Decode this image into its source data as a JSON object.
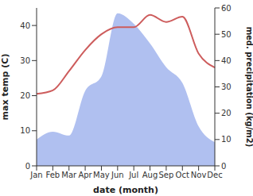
{
  "chart_data": {
    "type": "line",
    "x_label": "date (month)",
    "y_label": "max temp (C)",
    "y2_label": "med. precipitation (kg/m2)",
    "categories": [
      "Jan",
      "Feb",
      "Mar",
      "Apr",
      "May",
      "Jun",
      "Jul",
      "Aug",
      "Sep",
      "Oct",
      "Nov",
      "Dec"
    ],
    "ylim": [
      0,
      45
    ],
    "yticks": [
      0,
      10,
      20,
      30,
      40
    ],
    "y2lim": [
      0,
      60
    ],
    "y2ticks": [
      0,
      10,
      20,
      30,
      40,
      50,
      60
    ],
    "series": [
      {
        "name": "max temp (C)",
        "type": "line",
        "color": "#cd5c5c",
        "axis": "y",
        "values": [
          20.5,
          21.5,
          27,
          33,
          37.5,
          39.5,
          39.5,
          43,
          41,
          42.5,
          32,
          28
        ]
      },
      {
        "name": "med. precipitation (kg/m2)",
        "type": "area",
        "color": "#b0c0f0",
        "axis": "y2",
        "values": [
          10,
          13,
          11.5,
          28.5,
          34,
          58,
          54,
          46.5,
          37.5,
          31.5,
          15,
          9
        ]
      }
    ]
  }
}
